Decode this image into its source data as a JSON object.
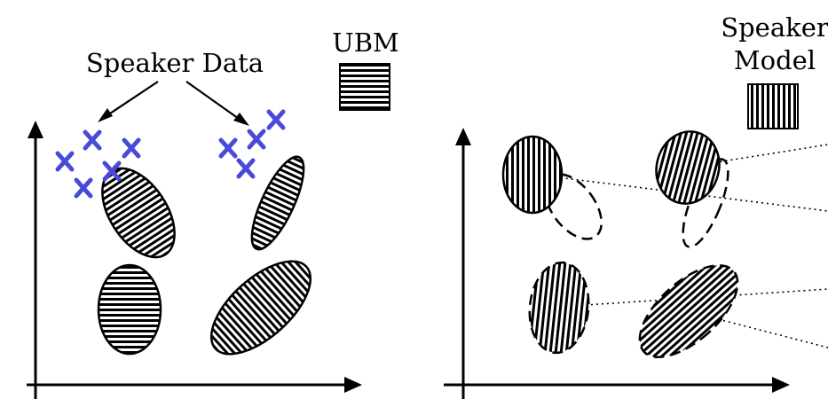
{
  "left_panel": {
    "speaker_data_label": "Speaker Data",
    "ubm_label": "UBM"
  },
  "right_panel": {
    "speaker_model_line1": "Speaker",
    "speaker_model_line2": "Model"
  },
  "colors": {
    "cross": "#4a4ad8",
    "ink": "#000000",
    "background": "#ffffff"
  }
}
